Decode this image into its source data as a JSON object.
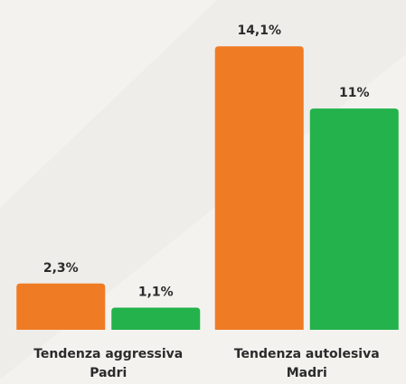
{
  "chart_data": {
    "type": "bar",
    "categories": [
      "Tendenza aggressiva",
      "Tendenza autolesiva"
    ],
    "series": [
      {
        "name": "Padri",
        "color": "#f07b25",
        "values": [
          2.3,
          14.1
        ],
        "value_labels": [
          "2,3%",
          "14,1%"
        ]
      },
      {
        "name": "Madri",
        "color": "#23b24b",
        "values": [
          1.1,
          11
        ],
        "value_labels": [
          "1,1%",
          "11%"
        ]
      }
    ],
    "ylim": [
      0,
      16.4
    ]
  }
}
